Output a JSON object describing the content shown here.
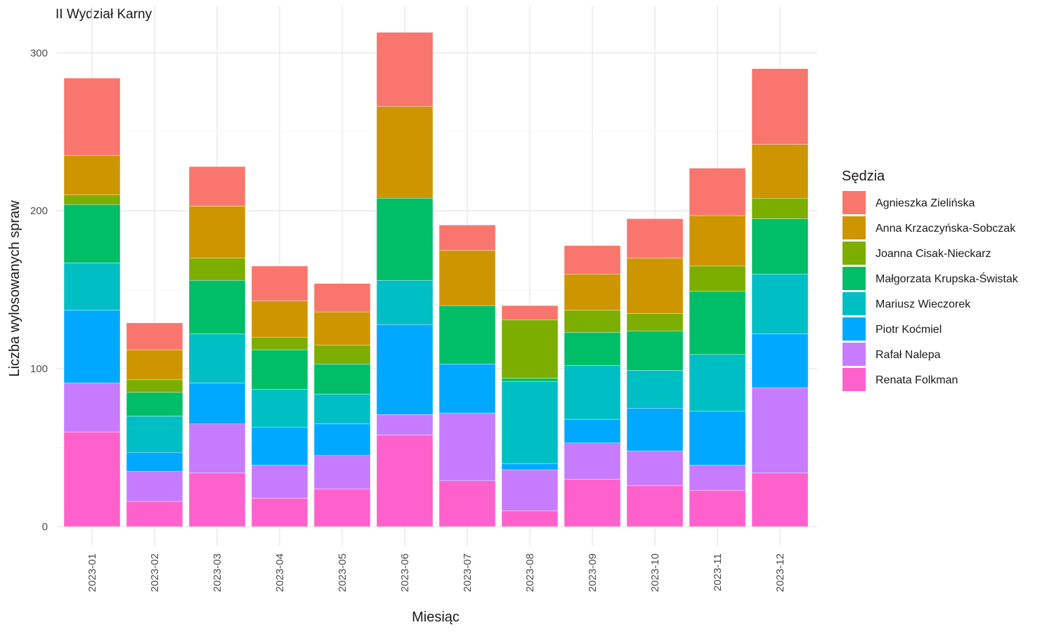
{
  "chart_data": {
    "type": "bar",
    "stacked": true,
    "title": "II Wydział Karny",
    "xlabel": "Miesiąc",
    "ylabel": "Liczba wylosowanych spraw",
    "ylim": [
      0,
      320
    ],
    "yticks": [
      0,
      100,
      200,
      300
    ],
    "grid": true,
    "legend": {
      "title": "Sędzia",
      "position": "right"
    },
    "categories": [
      "2023-01",
      "2023-02",
      "2023-03",
      "2023-04",
      "2023-05",
      "2023-06",
      "2023-07",
      "2023-08",
      "2023-09",
      "2023-10",
      "2023-11",
      "2023-12"
    ],
    "series": [
      {
        "name": "Agnieszka Zielińska",
        "color": "#F8766D",
        "values": [
          49,
          17,
          25,
          22,
          18,
          47,
          16,
          9,
          18,
          25,
          30,
          48
        ]
      },
      {
        "name": "Anna Krzaczyńska-Sobczak",
        "color": "#CD9600",
        "values": [
          25,
          19,
          33,
          23,
          21,
          58,
          35,
          0,
          23,
          35,
          32,
          34
        ]
      },
      {
        "name": "Joanna Cisak-Nieckarz",
        "color": "#7CAE00",
        "values": [
          6,
          8,
          14,
          8,
          12,
          0,
          0,
          37,
          14,
          11,
          16,
          13
        ]
      },
      {
        "name": "Małgorzata Krupska-Świstak",
        "color": "#00BE67",
        "values": [
          37,
          15,
          34,
          25,
          19,
          52,
          37,
          2,
          21,
          25,
          40,
          35
        ]
      },
      {
        "name": "Mariusz Wieczorek",
        "color": "#00BFC4",
        "values": [
          30,
          23,
          31,
          24,
          19,
          28,
          0,
          52,
          34,
          24,
          36,
          38
        ]
      },
      {
        "name": "Piotr Koćmiel",
        "color": "#00A9FF",
        "values": [
          46,
          12,
          26,
          24,
          20,
          57,
          31,
          4,
          15,
          27,
          34,
          34
        ]
      },
      {
        "name": "Rafał Nalepa",
        "color": "#C77CFF",
        "values": [
          31,
          19,
          31,
          21,
          21,
          13,
          43,
          26,
          23,
          22,
          16,
          54
        ]
      },
      {
        "name": "Renata Folkman",
        "color": "#FF61CC",
        "values": [
          60,
          16,
          34,
          18,
          24,
          58,
          29,
          10,
          30,
          26,
          23,
          34
        ]
      }
    ]
  }
}
